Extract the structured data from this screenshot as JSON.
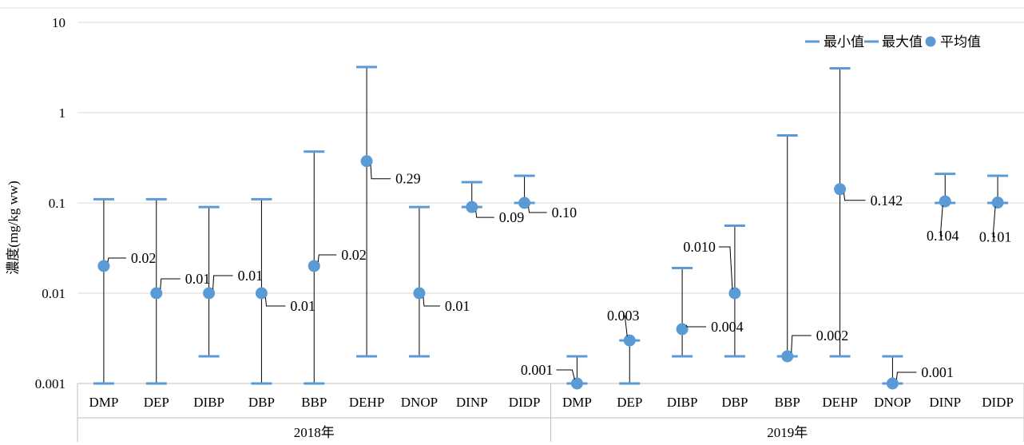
{
  "colors": {
    "marker": "#5b9bd5",
    "line": "#000000",
    "grid": "#d9d9d9",
    "axis": "#bfbfbf"
  },
  "legend": {
    "min_label": "最小值",
    "max_label": "最大值",
    "mean_label": "平均值"
  },
  "chart_data": {
    "type": "scatter",
    "ylabel": "濃度(mg/kg ww)",
    "ylim": [
      0.001,
      10
    ],
    "log_scale": true,
    "grid": true,
    "legend_position": "top-right",
    "y_ticks": [
      "10",
      "1",
      "0.1",
      "0.01",
      "0.001"
    ],
    "groups": [
      {
        "name": "2018年",
        "categories": [
          "DMP",
          "DEP",
          "DIBP",
          "DBP",
          "BBP",
          "DEHP",
          "DNOP",
          "DINP",
          "DIDP"
        ]
      },
      {
        "name": "2019年",
        "categories": [
          "DMP",
          "DEP",
          "DIBP",
          "DBP",
          "BBP",
          "DEHP",
          "DNOP",
          "DINP",
          "DIDP"
        ]
      }
    ],
    "series": [
      {
        "name": "最小值",
        "values": [
          0.001,
          0.001,
          0.002,
          0.001,
          0.001,
          0.002,
          0.002,
          0.09,
          0.1,
          0.001,
          0.001,
          0.002,
          0.002,
          0.002,
          0.002,
          0.001,
          0.1,
          0.1
        ]
      },
      {
        "name": "最大值",
        "values": [
          0.11,
          0.11,
          0.09,
          0.11,
          0.37,
          3.2,
          0.09,
          0.17,
          0.2,
          0.002,
          0.003,
          0.019,
          0.056,
          0.56,
          3.1,
          0.002,
          0.21,
          0.2
        ]
      },
      {
        "name": "平均值",
        "values": [
          0.02,
          0.01,
          0.01,
          0.01,
          0.02,
          0.29,
          0.01,
          0.09,
          0.1,
          0.001,
          0.003,
          0.004,
          0.01,
          0.002,
          0.142,
          0.001,
          0.104,
          0.101
        ]
      }
    ],
    "data_labels": [
      "0.02",
      "0.01",
      "0.01",
      "0.01",
      "0.02",
      "0.29",
      "0.01",
      "0.09",
      "0.10",
      "0.001",
      "0.003",
      "0.004",
      "0.010",
      "0.002",
      "0.142",
      "0.001",
      "0.104",
      "0.101"
    ]
  }
}
